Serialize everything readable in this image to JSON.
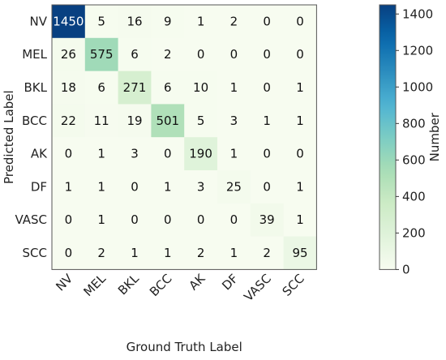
{
  "chart_data": {
    "type": "heatmap",
    "xlabel": "Ground Truth Label",
    "ylabel": "Predicted Label",
    "x_categories": [
      "NV",
      "MEL",
      "BKL",
      "BCC",
      "AK",
      "DF",
      "VASC",
      "SCC"
    ],
    "y_categories": [
      "NV",
      "MEL",
      "BKL",
      "BCC",
      "AK",
      "DF",
      "VASC",
      "SCC"
    ],
    "values": [
      [
        1450,
        5,
        16,
        9,
        1,
        2,
        0,
        0
      ],
      [
        26,
        575,
        6,
        2,
        0,
        0,
        0,
        0
      ],
      [
        18,
        6,
        271,
        6,
        10,
        1,
        0,
        1
      ],
      [
        22,
        11,
        19,
        501,
        5,
        3,
        1,
        1
      ],
      [
        0,
        1,
        3,
        0,
        190,
        1,
        0,
        0
      ],
      [
        1,
        1,
        0,
        1,
        3,
        25,
        0,
        1
      ],
      [
        0,
        1,
        0,
        0,
        0,
        0,
        39,
        1
      ],
      [
        0,
        2,
        1,
        1,
        2,
        1,
        2,
        95
      ]
    ],
    "colorbar": {
      "label": "Number",
      "min": 0,
      "max": 1450,
      "ticks": [
        0,
        200,
        400,
        600,
        800,
        1000,
        1200,
        1400
      ],
      "colormap": "GnBu"
    }
  }
}
